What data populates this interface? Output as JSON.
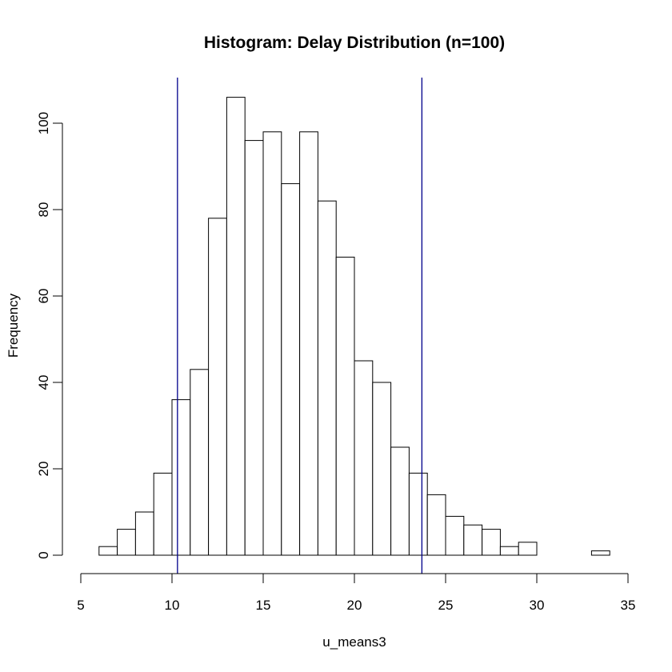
{
  "chart_data": {
    "type": "bar",
    "title": "Histogram: Delay Distribution (n=100)",
    "xlabel": "u_means3",
    "ylabel": "Frequency",
    "xlim": [
      5,
      35
    ],
    "ylim": [
      0,
      110
    ],
    "x_ticks": [
      5,
      10,
      15,
      20,
      25,
      30,
      35
    ],
    "y_ticks": [
      0,
      20,
      40,
      60,
      80,
      100
    ],
    "bin_width": 1,
    "bins": [
      {
        "start": 6,
        "end": 7,
        "count": 2
      },
      {
        "start": 7,
        "end": 8,
        "count": 6
      },
      {
        "start": 8,
        "end": 9,
        "count": 10
      },
      {
        "start": 9,
        "end": 10,
        "count": 19
      },
      {
        "start": 10,
        "end": 11,
        "count": 36
      },
      {
        "start": 11,
        "end": 12,
        "count": 43
      },
      {
        "start": 12,
        "end": 13,
        "count": 78
      },
      {
        "start": 13,
        "end": 14,
        "count": 106
      },
      {
        "start": 14,
        "end": 15,
        "count": 96
      },
      {
        "start": 15,
        "end": 16,
        "count": 98
      },
      {
        "start": 16,
        "end": 17,
        "count": 86
      },
      {
        "start": 17,
        "end": 18,
        "count": 98
      },
      {
        "start": 18,
        "end": 19,
        "count": 82
      },
      {
        "start": 19,
        "end": 20,
        "count": 69
      },
      {
        "start": 20,
        "end": 21,
        "count": 45
      },
      {
        "start": 21,
        "end": 22,
        "count": 40
      },
      {
        "start": 22,
        "end": 23,
        "count": 25
      },
      {
        "start": 23,
        "end": 24,
        "count": 19
      },
      {
        "start": 24,
        "end": 25,
        "count": 14
      },
      {
        "start": 25,
        "end": 26,
        "count": 9
      },
      {
        "start": 26,
        "end": 27,
        "count": 7
      },
      {
        "start": 27,
        "end": 28,
        "count": 6
      },
      {
        "start": 28,
        "end": 29,
        "count": 2
      },
      {
        "start": 29,
        "end": 30,
        "count": 3
      },
      {
        "start": 30,
        "end": 31,
        "count": 0
      },
      {
        "start": 31,
        "end": 32,
        "count": 0
      },
      {
        "start": 32,
        "end": 33,
        "count": 0
      },
      {
        "start": 33,
        "end": 34,
        "count": 1
      }
    ],
    "reference_lines": [
      {
        "x": 10.3,
        "color": "#00008b"
      },
      {
        "x": 23.7,
        "color": "#00008b"
      }
    ],
    "bar_fill": "#ffffff",
    "bar_stroke": "#000000",
    "grid": false,
    "legend": "none"
  }
}
